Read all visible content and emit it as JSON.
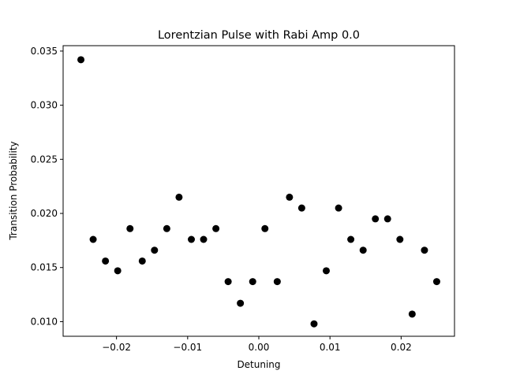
{
  "chart_data": {
    "type": "scatter",
    "title": "Lorentzian Pulse with Rabi Amp 0.0",
    "xlabel": "Detuning",
    "ylabel": "Transition Probability",
    "xlim": [
      -0.0275,
      0.0275
    ],
    "ylim": [
      0.00865,
      0.0355
    ],
    "x_ticks": [
      -0.02,
      -0.01,
      0.0,
      0.01,
      0.02
    ],
    "x_tick_labels": [
      "−0.02",
      "−0.01",
      "0.00",
      "0.01",
      "0.02"
    ],
    "y_ticks": [
      0.01,
      0.015,
      0.02,
      0.025,
      0.03,
      0.035
    ],
    "y_tick_labels": [
      "0.010",
      "0.015",
      "0.020",
      "0.025",
      "0.030",
      "0.035"
    ],
    "grid": false,
    "marker_color": "#000000",
    "series": [
      {
        "x": [
          -0.025,
          -0.02328,
          -0.02155,
          -0.01983,
          -0.0181,
          -0.01638,
          -0.01466,
          -0.01293,
          -0.01121,
          -0.00948,
          -0.00776,
          -0.00603,
          -0.00431,
          -0.00259,
          -0.00086,
          0.00086,
          0.00259,
          0.00431,
          0.00603,
          0.00776,
          0.00948,
          0.01121,
          0.01293,
          0.01466,
          0.01638,
          0.0181,
          0.01983,
          0.02155,
          0.02328,
          0.025
        ],
        "y": [
          0.0342,
          0.0176,
          0.0156,
          0.0147,
          0.0186,
          0.0156,
          0.0166,
          0.0186,
          0.0215,
          0.0176,
          0.0176,
          0.0186,
          0.0137,
          0.0117,
          0.0137,
          0.0186,
          0.0137,
          0.0215,
          0.0205,
          0.0098,
          0.0147,
          0.0205,
          0.0176,
          0.0166,
          0.0195,
          0.0195,
          0.0176,
          0.0107,
          0.0166,
          0.0137
        ]
      }
    ]
  }
}
